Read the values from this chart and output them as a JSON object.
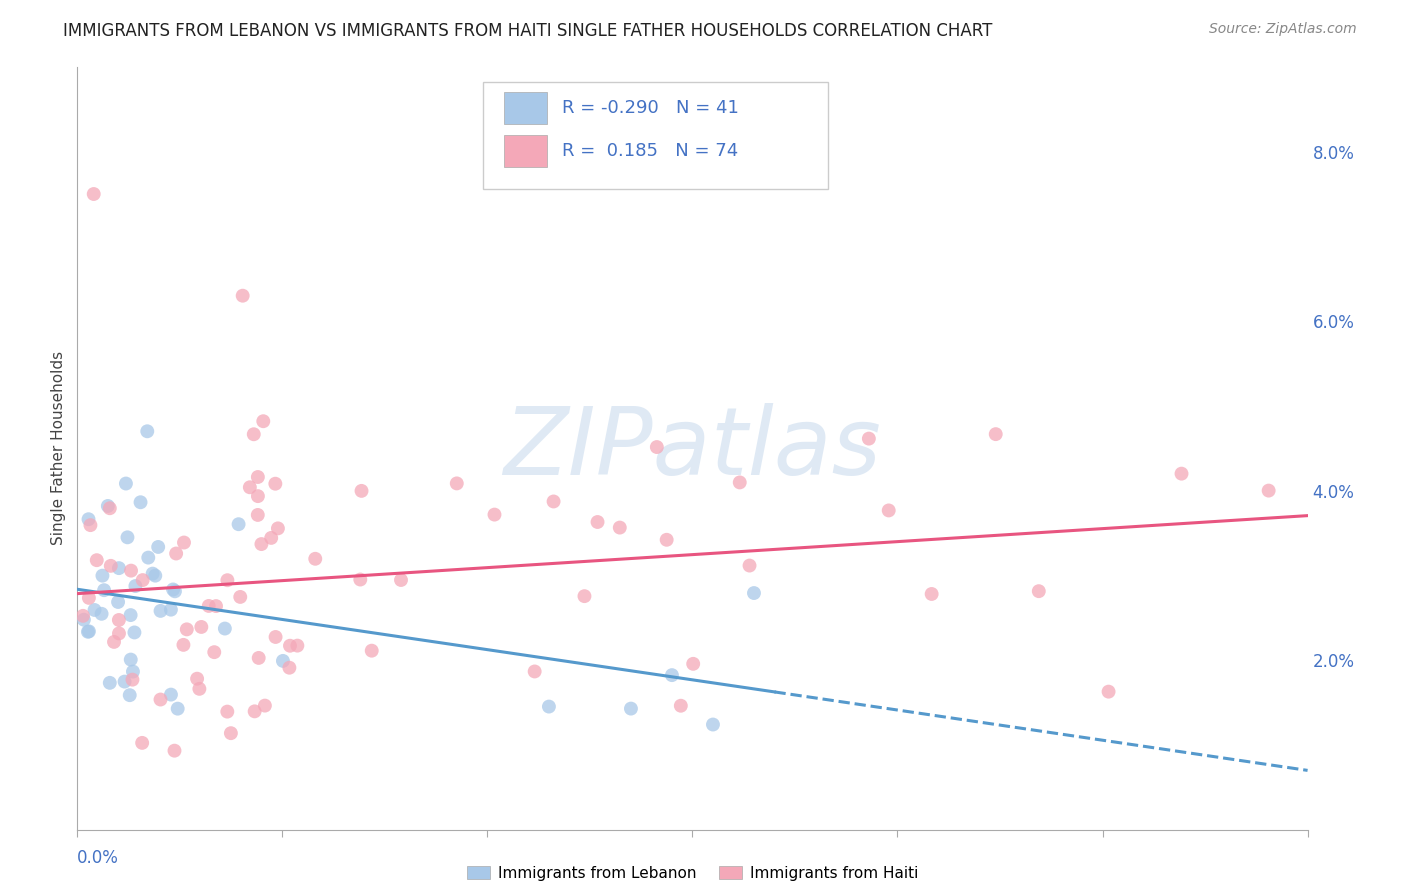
{
  "title": "IMMIGRANTS FROM LEBANON VS IMMIGRANTS FROM HAITI SINGLE FATHER HOUSEHOLDS CORRELATION CHART",
  "source": "Source: ZipAtlas.com",
  "ylabel": "Single Father Households",
  "watermark": "ZIPatlas",
  "color_lebanon": "#a8c8e8",
  "color_haiti": "#f4a8b8",
  "color_lebanon_line": "#5599cc",
  "color_haiti_line": "#e85580",
  "color_axis_blue": "#4472c4",
  "xlim": [
    0.0,
    0.3
  ],
  "ylim": [
    0.0,
    0.09
  ],
  "right_ytick_vals": [
    0.02,
    0.04,
    0.06,
    0.08
  ],
  "right_ytick_labels": [
    "2.0%",
    "4.0%",
    "6.0%",
    "8.0%"
  ],
  "background_color": "#ffffff",
  "grid_color": "#cccccc",
  "title_fontsize": 12,
  "source_fontsize": 10,
  "axis_label_fontsize": 11,
  "tick_fontsize": 12,
  "legend_fontsize": 13,
  "marker_size": 100,
  "leb_r": "-0.290",
  "leb_n": "41",
  "haiti_r": "0.185",
  "haiti_n": "74"
}
